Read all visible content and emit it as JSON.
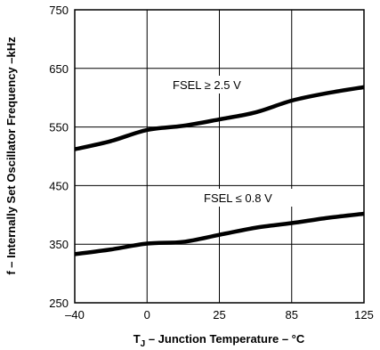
{
  "chart_data": {
    "type": "line",
    "xlabel_main": "T",
    "xlabel_sub": "J",
    "xlabel_rest": " – Junction Temperature – °C",
    "ylabel": "f – Internally Set Oscillator Frequency –kHz",
    "x_ticks": [
      "–40",
      "0",
      "25",
      "85",
      "125"
    ],
    "y_ticks": [
      "250",
      "350",
      "450",
      "550",
      "650",
      "750"
    ],
    "ylim": [
      250,
      750
    ],
    "grid": true,
    "series": [
      {
        "name": "FSEL ≥ 2.5 V",
        "points": [
          [
            0,
            512
          ],
          [
            0.5,
            526
          ],
          [
            1,
            545
          ],
          [
            1.5,
            552
          ],
          [
            2,
            563
          ],
          [
            2.5,
            575
          ],
          [
            3,
            595
          ],
          [
            3.5,
            608
          ],
          [
            4,
            618
          ]
        ]
      },
      {
        "name": "FSEL ≤ 0.8 V",
        "points": [
          [
            0,
            333
          ],
          [
            0.5,
            341
          ],
          [
            1,
            351
          ],
          [
            1.5,
            354
          ],
          [
            2,
            366
          ],
          [
            2.5,
            378
          ],
          [
            3,
            386
          ],
          [
            3.5,
            395
          ],
          [
            4,
            402
          ]
        ]
      }
    ]
  }
}
